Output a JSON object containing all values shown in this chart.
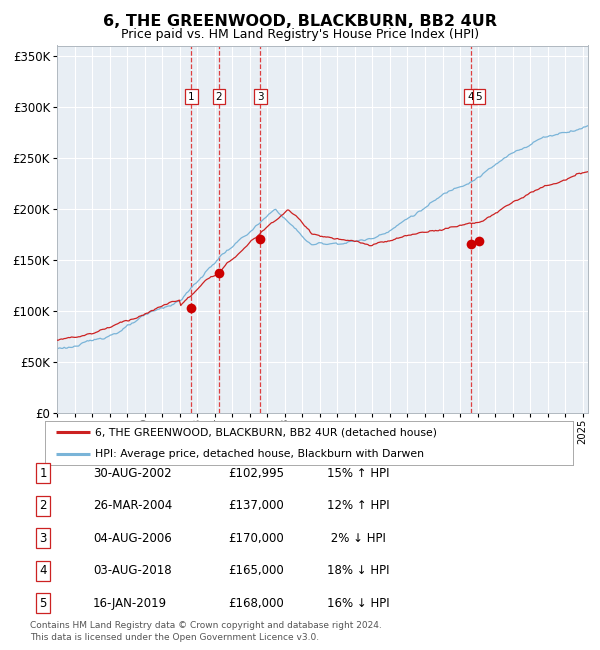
{
  "title": "6, THE GREENWOOD, BLACKBURN, BB2 4UR",
  "subtitle": "Price paid vs. HM Land Registry's House Price Index (HPI)",
  "bg_color": "#ffffff",
  "plot_bg_color": "#e8eef4",
  "legend_label_red": "6, THE GREENWOOD, BLACKBURN, BB2 4UR (detached house)",
  "legend_label_blue": "HPI: Average price, detached house, Blackburn with Darwen",
  "footer": "Contains HM Land Registry data © Crown copyright and database right 2024.\nThis data is licensed under the Open Government Licence v3.0.",
  "ylim": [
    0,
    360000
  ],
  "yticks": [
    0,
    50000,
    100000,
    150000,
    200000,
    250000,
    300000,
    350000
  ],
  "xstart": 1995.0,
  "xend": 2025.3,
  "transactions": [
    {
      "num": 1,
      "date": "30-AUG-2002",
      "price": 102995,
      "pct": "15%",
      "dir": "↑",
      "year": 2002.67
    },
    {
      "num": 2,
      "date": "26-MAR-2004",
      "price": 137000,
      "pct": "12%",
      "dir": "↑",
      "year": 2004.24
    },
    {
      "num": 3,
      "date": "04-AUG-2006",
      "price": 170000,
      "pct": "2%",
      "dir": "↓",
      "year": 2006.6
    },
    {
      "num": 4,
      "date": "03-AUG-2018",
      "price": 165000,
      "pct": "18%",
      "dir": "↓",
      "year": 2018.6
    },
    {
      "num": 5,
      "date": "16-JAN-2019",
      "price": 168000,
      "pct": "16%",
      "dir": "↓",
      "year": 2019.08
    }
  ],
  "vlines": [
    2002.67,
    2004.24,
    2006.6,
    2018.6
  ],
  "table_rows": [
    [
      "1",
      "30-AUG-2002",
      "£102,995",
      "15% ↑ HPI"
    ],
    [
      "2",
      "26-MAR-2004",
      "£137,000",
      "12% ↑ HPI"
    ],
    [
      "3",
      "04-AUG-2006",
      "£170,000",
      " 2% ↓ HPI"
    ],
    [
      "4",
      "03-AUG-2018",
      "£165,000",
      "18% ↓ HPI"
    ],
    [
      "5",
      "16-JAN-2019",
      "£168,000",
      "16% ↓ HPI"
    ]
  ]
}
